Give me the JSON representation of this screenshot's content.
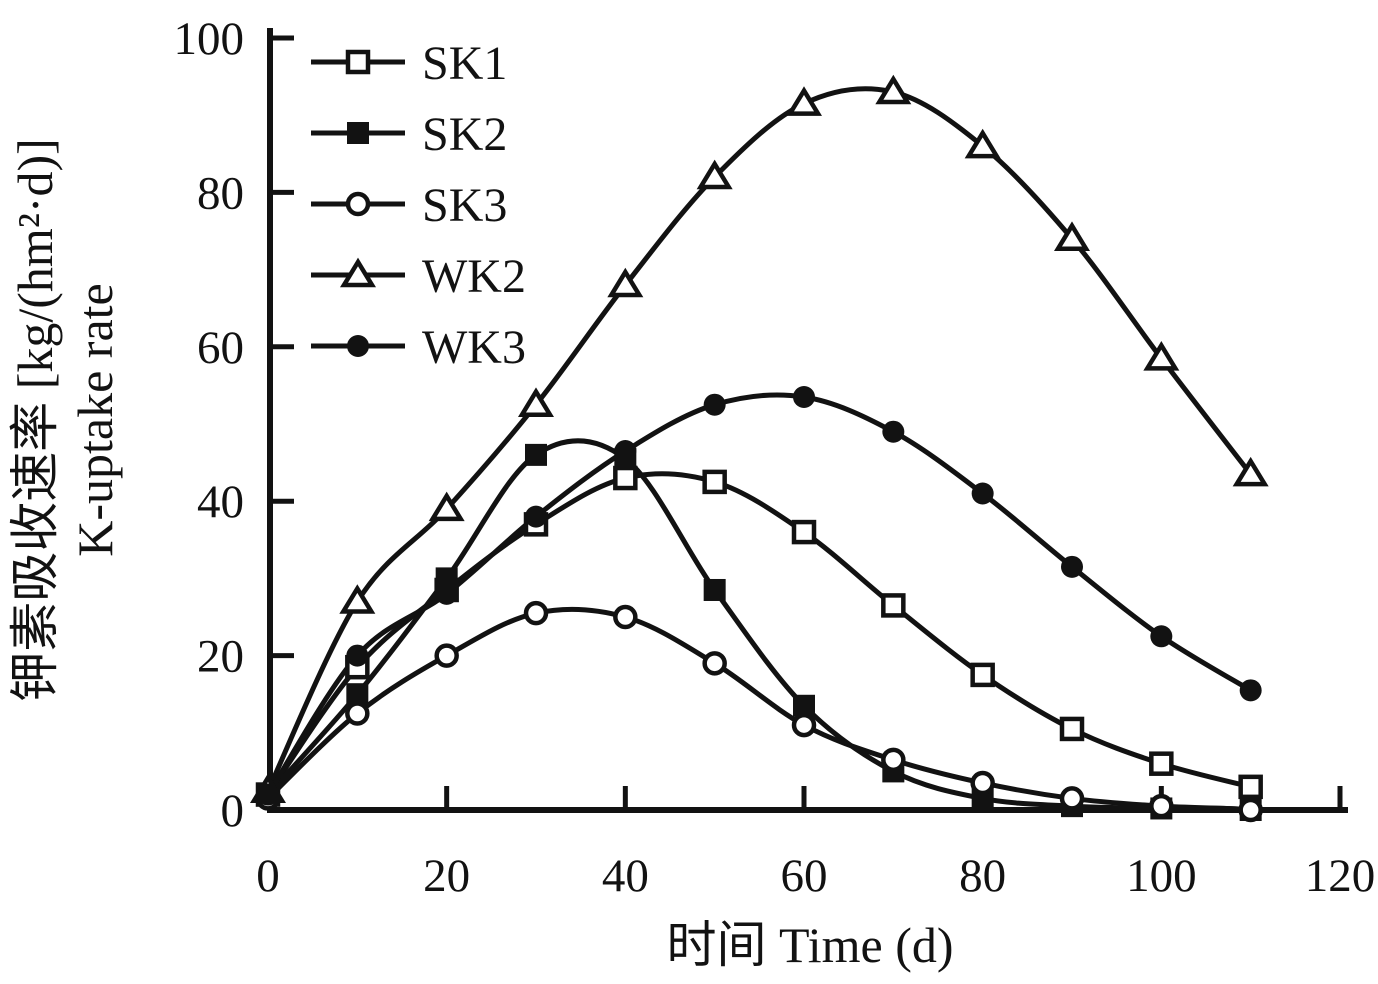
{
  "figure": {
    "background": "#ffffff",
    "ink_color": "#121212",
    "xlabel": "时间 Time (d)",
    "ylabel_cn": "钾素吸收速率 [kg/(hm²·d)]",
    "ylabel_en": "K-uptake rate"
  },
  "chart_data": {
    "type": "line",
    "title": "",
    "xlabel": "时间 Time (d)",
    "ylabel": "钾素吸收速率 [kg/(hm²·d)] K-uptake rate",
    "x": [
      0,
      10,
      20,
      30,
      40,
      50,
      60,
      70,
      80,
      90,
      100,
      110
    ],
    "series": [
      {
        "name": "SK1",
        "marker": "square-open",
        "values": [
          2,
          18.5,
          28.5,
          37,
          43,
          42.5,
          36,
          26.5,
          17.5,
          10.5,
          6,
          3
        ]
      },
      {
        "name": "SK2",
        "marker": "square-filled",
        "values": [
          2,
          15,
          30,
          46,
          45.5,
          28.5,
          13.5,
          5,
          1.5,
          0.5,
          0.2,
          0
        ]
      },
      {
        "name": "SK3",
        "marker": "circle-open",
        "values": [
          1.5,
          12.5,
          20,
          25.5,
          25,
          19,
          11,
          6.5,
          3.5,
          1.5,
          0.5,
          0
        ]
      },
      {
        "name": "WK2",
        "marker": "triangle-open",
        "values": [
          2.5,
          27,
          39,
          52.5,
          68,
          82,
          91.5,
          93,
          86,
          74,
          58.5,
          43.5
        ]
      },
      {
        "name": "WK3",
        "marker": "circle-filled",
        "values": [
          2,
          20,
          28,
          38,
          46.5,
          52.5,
          53.5,
          49,
          41,
          31.5,
          22.5,
          15.5
        ]
      }
    ],
    "xlim": [
      0,
      120
    ],
    "ylim": [
      0,
      100
    ],
    "xticks": [
      0,
      20,
      40,
      60,
      80,
      100,
      120
    ],
    "yticks": [
      0,
      20,
      40,
      60,
      80,
      100
    ],
    "grid": false,
    "legend_position": "top-left",
    "legend_entries": [
      "SK1",
      "SK2",
      "SK3",
      "WK2",
      "WK3"
    ]
  }
}
